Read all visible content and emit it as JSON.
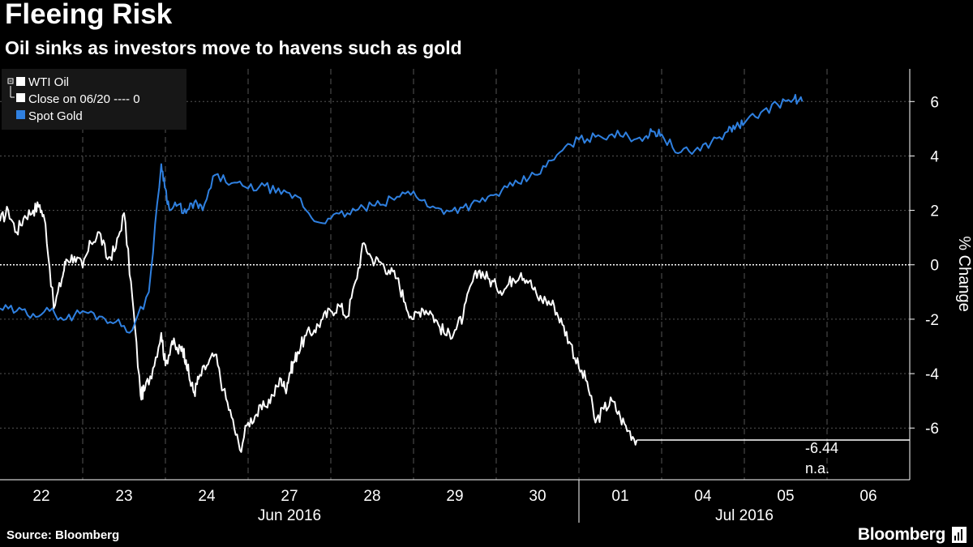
{
  "header": {
    "title": "Fleeing Risk",
    "subtitle": "Oil sinks as investors move to havens such as gold"
  },
  "footer": {
    "source": "Source: Bloomberg",
    "brand": "Bloomberg"
  },
  "colors": {
    "background": "#000000",
    "oil": "#ffffff",
    "gold": "#2f80e0",
    "grid": "#555555"
  },
  "chart_data": {
    "type": "line",
    "title": "Fleeing Risk",
    "subtitle": "Oil sinks as investors move to havens such as gold",
    "ylabel": "% Change",
    "ylim": [
      -7.9,
      7.2
    ],
    "yticks": [
      6,
      4,
      2,
      0,
      -2,
      -4,
      -6
    ],
    "x_ticks": [
      "22",
      "23",
      "24",
      "27",
      "28",
      "29",
      "30",
      "01",
      "04",
      "05",
      "06"
    ],
    "month_labels": [
      "Jun 2016",
      "Jul 2016"
    ],
    "x_domain_days": [
      0,
      11
    ],
    "grid": true,
    "legend_position": "top-left",
    "legend": {
      "oil": "WTI Oil",
      "close": "Close on 06/20 ---- 0",
      "gold": "Spot Gold"
    },
    "last_value_label": "-6.44",
    "na_label": "n.a.",
    "reference_line": {
      "name": "Close on 06/20",
      "value": 0
    },
    "series": [
      {
        "name": "WTI Oil",
        "color": "#ffffff",
        "x": [
          0.0,
          0.1,
          0.2,
          0.3,
          0.4,
          0.48,
          0.55,
          0.65,
          0.75,
          0.8,
          0.9,
          1.0,
          1.1,
          1.2,
          1.3,
          1.4,
          1.5,
          1.6,
          1.7,
          1.75,
          1.85,
          1.95,
          2.0,
          2.08,
          2.15,
          2.2,
          2.25,
          2.3,
          2.35,
          2.4,
          2.5,
          2.6,
          2.7,
          2.8,
          2.9,
          3.0,
          3.1,
          3.2,
          3.3,
          3.4,
          3.45,
          3.5,
          3.55,
          3.6,
          3.7,
          3.8,
          3.9,
          4.0,
          4.1,
          4.2,
          4.3,
          4.4,
          4.5,
          4.6,
          4.7,
          4.8,
          4.9,
          5.0,
          5.1,
          5.2,
          5.3,
          5.4,
          5.5,
          5.6,
          5.7,
          5.8,
          5.9,
          6.0,
          6.1,
          6.2,
          6.3,
          6.4,
          6.5,
          6.6,
          6.7,
          6.8,
          6.9,
          7.0,
          7.1,
          7.2,
          7.3,
          7.4,
          7.5,
          7.6,
          7.7,
          7.8,
          7.9,
          8.0,
          8.1,
          8.2,
          8.3,
          8.4,
          8.5,
          8.6,
          8.7,
          8.8,
          8.9,
          9.0,
          9.1,
          9.2,
          9.3,
          9.4,
          9.5,
          9.6,
          9.65,
          9.7
        ],
        "values": [
          1.6,
          2.0,
          1.2,
          1.8,
          2.0,
          2.2,
          1.5,
          -1.6,
          -0.5,
          0.2,
          0.3,
          -0.1,
          0.8,
          1.2,
          0.2,
          0.6,
          1.9,
          -1.2,
          -4.8,
          -4.6,
          -3.8,
          -2.5,
          -3.7,
          -2.8,
          -3.2,
          -3.0,
          -3.5,
          -4.3,
          -4.7,
          -4.2,
          -3.7,
          -3.3,
          -4.6,
          -5.6,
          -6.8,
          -5.8,
          -5.5,
          -5.2,
          -4.8,
          -4.2,
          -4.6,
          -4.0,
          -3.6,
          -3.2,
          -2.6,
          -2.4,
          -2.0,
          -1.7,
          -1.5,
          -1.9,
          -0.6,
          0.8,
          0.2,
          0.1,
          -0.2,
          -0.5,
          -1.4,
          -2.0,
          -1.6,
          -1.7,
          -2.2,
          -2.6,
          -2.4,
          -1.9,
          -0.7,
          -0.2,
          -0.5,
          -0.8,
          -0.9,
          -0.5,
          -0.3,
          -0.6,
          -1.2,
          -1.3,
          -1.5,
          -2.2,
          -2.9,
          -3.8,
          -4.3,
          -5.8,
          -5.3,
          -5.0,
          -5.6,
          -6.1,
          -6.44,
          -6.44,
          -6.44,
          -6.44,
          -6.44,
          -6.44,
          -6.44,
          -6.44,
          -6.44,
          -6.44,
          -6.44,
          -6.44,
          -6.44,
          -6.44,
          -6.44,
          -6.44,
          -6.44,
          -6.44,
          -6.44,
          -6.44,
          -6.44,
          -6.44
        ]
      },
      {
        "name": "Spot Gold",
        "color": "#2f80e0",
        "x": [
          0.0,
          0.2,
          0.4,
          0.6,
          0.8,
          1.0,
          1.2,
          1.4,
          1.6,
          1.8,
          1.95,
          2.0,
          2.05,
          2.15,
          2.25,
          2.35,
          2.45,
          2.6,
          2.8,
          3.0,
          3.2,
          3.4,
          3.6,
          3.8,
          4.0,
          4.2,
          4.4,
          4.6,
          4.8,
          5.0,
          5.2,
          5.4,
          5.6,
          5.8,
          6.0,
          6.2,
          6.4,
          6.6,
          6.8,
          7.0,
          7.2,
          7.4,
          7.6,
          7.8,
          7.9,
          8.0,
          8.2,
          8.4,
          8.6,
          8.8,
          8.9,
          9.0,
          9.2,
          9.4,
          9.6,
          9.7
        ],
        "values": [
          -1.6,
          -1.7,
          -1.8,
          -1.7,
          -2.0,
          -1.7,
          -1.9,
          -2.1,
          -2.4,
          -1.0,
          3.7,
          2.8,
          2.0,
          2.2,
          1.9,
          2.3,
          2.0,
          3.3,
          3.0,
          2.8,
          2.9,
          2.6,
          2.5,
          1.6,
          1.7,
          1.9,
          2.1,
          2.2,
          2.5,
          2.7,
          2.1,
          2.0,
          2.1,
          2.3,
          2.6,
          2.9,
          3.2,
          3.6,
          4.2,
          4.6,
          4.7,
          4.8,
          4.7,
          4.7,
          4.9,
          4.8,
          4.1,
          4.2,
          4.5,
          4.9,
          5.1,
          5.2,
          5.6,
          5.9,
          6.1,
          6.0
        ]
      }
    ]
  }
}
